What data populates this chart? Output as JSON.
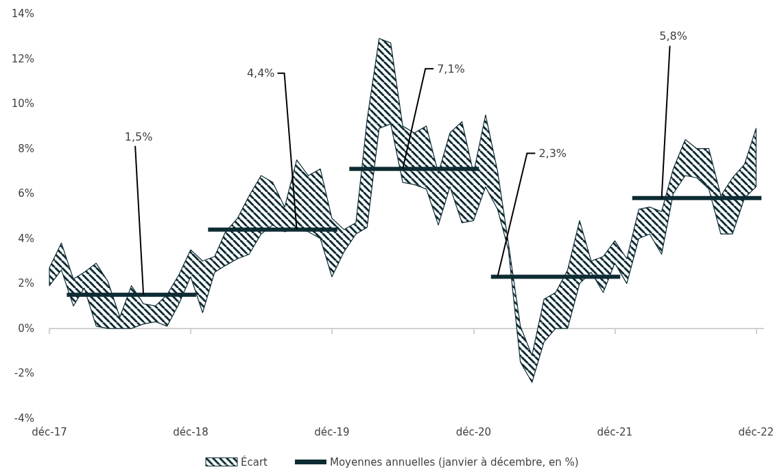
{
  "chart_data": {
    "type": "area",
    "legend": "bottom",
    "marker": "none",
    "x": [
      "2017-12",
      "2018-01",
      "2018-02",
      "2018-03",
      "2018-04",
      "2018-05",
      "2018-06",
      "2018-07",
      "2018-08",
      "2018-09",
      "2018-10",
      "2018-11",
      "2018-12",
      "2019-01",
      "2019-02",
      "2019-03",
      "2019-04",
      "2019-05",
      "2019-06",
      "2019-07",
      "2019-08",
      "2019-09",
      "2019-10",
      "2019-11",
      "2019-12",
      "2020-01",
      "2020-02",
      "2020-03",
      "2020-04",
      "2020-05",
      "2020-06",
      "2020-07",
      "2020-08",
      "2020-09",
      "2020-10",
      "2020-11",
      "2020-12",
      "2021-01",
      "2021-02",
      "2021-03",
      "2021-04",
      "2021-05",
      "2021-06",
      "2021-07",
      "2021-08",
      "2021-09",
      "2021-10",
      "2021-11",
      "2021-12",
      "2022-01",
      "2022-02",
      "2022-03",
      "2022-04",
      "2022-05",
      "2022-06",
      "2022-07",
      "2022-08",
      "2022-09",
      "2022-10",
      "2022-11",
      "2022-12"
    ],
    "xlim": [
      "2017-12",
      "2022-12-20"
    ],
    "xticks": [
      {
        "value": "2017-12",
        "label": "déc-17"
      },
      {
        "value": "2018-12",
        "label": "déc-18"
      },
      {
        "value": "2019-12",
        "label": "déc-19"
      },
      {
        "value": "2020-12",
        "label": "déc-20"
      },
      {
        "value": "2021-12",
        "label": "déc-21"
      },
      {
        "value": "2022-12",
        "label": "déc-22"
      }
    ],
    "ylim": [
      -4,
      14
    ],
    "yticks": [
      {
        "value": -4,
        "label": "-4%"
      },
      {
        "value": -2,
        "label": "-2%"
      },
      {
        "value": 0,
        "label": "0%"
      },
      {
        "value": 2,
        "label": "2%"
      },
      {
        "value": 4,
        "label": "4%"
      },
      {
        "value": 6,
        "label": "6%"
      },
      {
        "value": 8,
        "label": "8%"
      },
      {
        "value": 10,
        "label": "10%"
      },
      {
        "value": 12,
        "label": "12%"
      },
      {
        "value": 14,
        "label": "14%"
      }
    ],
    "series": [
      {
        "name": "Écart",
        "color": "#0d2b33",
        "values": [
          null,
          null,
          null,
          null,
          null,
          null,
          null,
          null,
          null,
          null,
          null,
          null,
          null,
          null,
          null,
          null,
          null,
          null,
          null,
          null,
          null,
          null,
          null,
          null,
          null,
          null,
          null,
          null,
          null,
          null,
          null,
          null,
          null,
          null,
          null,
          null,
          null,
          null,
          null,
          null,
          null,
          null,
          null,
          null,
          null,
          null,
          null,
          null,
          null,
          null,
          null,
          null,
          null,
          null,
          null,
          null,
          null,
          null,
          null,
          null,
          null
        ],
        "upper": [
          2.7,
          3.8,
          2.2,
          2.5,
          2.9,
          2.1,
          0.5,
          1.9,
          1.1,
          1.0,
          1.5,
          2.4,
          3.5,
          3.0,
          3.2,
          4.3,
          4.9,
          5.9,
          6.8,
          6.5,
          5.4,
          7.5,
          6.8,
          7.1,
          4.9,
          4.4,
          4.7,
          9.3,
          12.9,
          12.7,
          9.0,
          8.7,
          9.0,
          6.9,
          8.7,
          9.2,
          6.9,
          9.5,
          7.0,
          3.8,
          0.1,
          -1.2,
          1.3,
          1.6,
          2.6,
          4.8,
          3.0,
          3.2,
          3.9,
          3.1,
          5.3,
          5.4,
          5.2,
          7.1,
          8.4,
          8.0,
          8.0,
          5.9,
          6.7,
          7.3,
          8.9
        ],
        "lower": [
          1.9,
          2.6,
          1.0,
          1.8,
          0.1,
          0.0,
          0.0,
          0.0,
          0.2,
          0.3,
          0.1,
          1.1,
          2.3,
          0.7,
          2.5,
          2.8,
          3.1,
          3.3,
          4.2,
          4.6,
          4.3,
          4.5,
          4.3,
          4.0,
          2.3,
          3.4,
          4.2,
          4.5,
          8.9,
          9.1,
          6.5,
          6.4,
          6.2,
          4.6,
          6.3,
          4.7,
          4.8,
          6.3,
          5.3,
          3.5,
          -1.5,
          -2.4,
          -0.6,
          0.0,
          0.0,
          2.0,
          2.5,
          1.6,
          2.9,
          2.0,
          4.0,
          4.2,
          3.3,
          6.0,
          6.8,
          6.7,
          6.2,
          4.2,
          4.2,
          5.8,
          6.3
        ]
      },
      {
        "name": "Moyennes annuelles (janvier à décembre, en %)",
        "type": "line",
        "color": "#0d2b33",
        "x": [
          "2018-01-15",
          "2018-12-15",
          "2018-12-31",
          "2019-01-15",
          "2019-12-15",
          "2019-12-31",
          "2020-01-15",
          "2020-12-15",
          "2020-12-31",
          "2021-01-15",
          "2021-12-15",
          "2021-12-31",
          "2022-01-15",
          "2022-12-15"
        ],
        "values": [
          1.5,
          1.5,
          null,
          4.4,
          4.4,
          null,
          7.1,
          7.1,
          null,
          2.3,
          2.3,
          null,
          5.8,
          5.8
        ]
      }
    ],
    "annotations": [
      {
        "text": "1,5%",
        "x": "2018-08",
        "y": 1.5
      },
      {
        "text": "4,4%",
        "x": "2019-09",
        "y": 4.4
      },
      {
        "text": "7,1%",
        "x": "2020-06",
        "y": 7.1
      },
      {
        "text": "2,3%",
        "x": "2021-02",
        "y": 2.3
      },
      {
        "text": "5,8%",
        "x": "2022-04",
        "y": 5.8
      }
    ]
  }
}
